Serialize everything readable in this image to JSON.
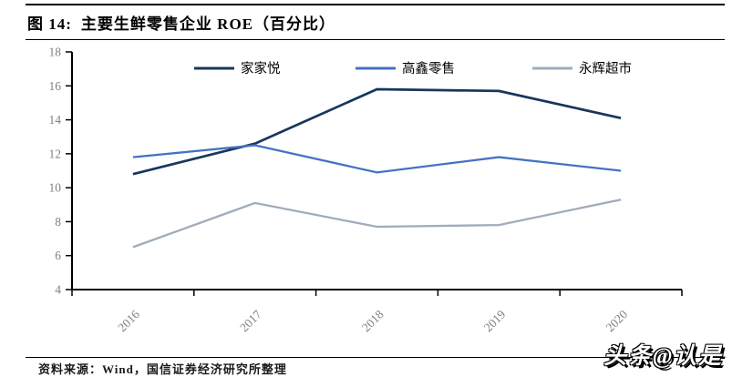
{
  "header": {
    "figure_no": "图 14:",
    "figure_title": "主要生鲜零售企业 ROE（百分比）"
  },
  "chart_data": {
    "type": "line",
    "title": "主要生鲜零售企业 ROE（百分比）",
    "categories": [
      "2016",
      "2017",
      "2018",
      "2019",
      "2020"
    ],
    "series": [
      {
        "name": "家家悦",
        "color": "#17365D",
        "values": [
          10.8,
          12.6,
          15.8,
          15.7,
          14.1
        ]
      },
      {
        "name": "高鑫零售",
        "color": "#4472C4",
        "values": [
          11.8,
          12.5,
          10.9,
          11.8,
          11.0
        ]
      },
      {
        "name": "永辉超市",
        "color": "#9FACBC",
        "values": [
          6.5,
          9.1,
          7.7,
          7.8,
          9.3
        ]
      }
    ],
    "ylim": [
      4,
      18
    ],
    "yticks": [
      4,
      6,
      8,
      10,
      12,
      14,
      16,
      18
    ],
    "xlabel": "",
    "ylabel": "",
    "grid": false,
    "legend_position": "top",
    "colors": {
      "axis": "#000000",
      "tick_label": "#7F7F7F",
      "legend_text": "#000000"
    }
  },
  "footer": {
    "source": "资料来源：Wind，国信证券经济研究所整理",
    "watermark": "头条@认是"
  }
}
